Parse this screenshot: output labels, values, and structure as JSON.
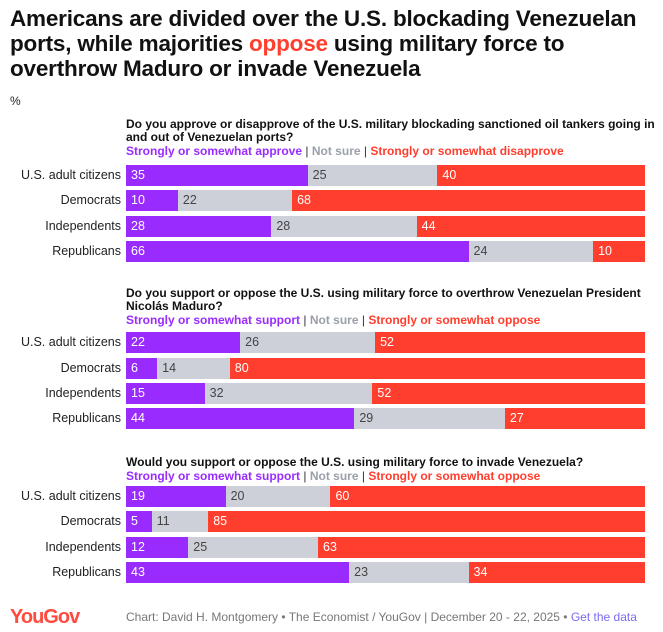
{
  "title_parts": {
    "pre": "Americans are divided over the U.S. blockading Venezuelan ports, while majorities ",
    "highlight": "oppose",
    "post": " using military force to overthrow Maduro or invade Venezuela"
  },
  "unit": "%",
  "colors": {
    "approve": "#9a2bff",
    "not_sure": "#cdd0d9",
    "oppose": "#ff3e2e"
  },
  "chart_data": [
    {
      "type": "bar",
      "stacked": true,
      "orientation": "horizontal",
      "title": "Do you approve or disapprove of the U.S. military blockading sanctioned oil tankers going in and out of Venezuelan ports?",
      "legend": [
        "Strongly or somewhat approve",
        "Not sure",
        "Strongly or somewhat disapprove"
      ],
      "categories": [
        "U.S. adult citizens",
        "Democrats",
        "Independents",
        "Republicans"
      ],
      "series": [
        {
          "name": "Strongly or somewhat approve",
          "values": [
            35,
            10,
            28,
            66
          ]
        },
        {
          "name": "Not sure",
          "values": [
            25,
            22,
            28,
            24
          ]
        },
        {
          "name": "Strongly or somewhat disapprove",
          "values": [
            40,
            68,
            44,
            10
          ]
        }
      ]
    },
    {
      "type": "bar",
      "stacked": true,
      "orientation": "horizontal",
      "title": "Do you support or oppose the U.S. using military force to overthrow Venezuelan President Nicolás Maduro?",
      "legend": [
        "Strongly or somewhat support",
        "Not sure",
        "Strongly or somewhat oppose"
      ],
      "categories": [
        "U.S. adult citizens",
        "Democrats",
        "Independents",
        "Republicans"
      ],
      "series": [
        {
          "name": "Strongly or somewhat support",
          "values": [
            22,
            6,
            15,
            44
          ]
        },
        {
          "name": "Not sure",
          "values": [
            26,
            14,
            32,
            29
          ]
        },
        {
          "name": "Strongly or somewhat oppose",
          "values": [
            52,
            80,
            52,
            27
          ]
        }
      ]
    },
    {
      "type": "bar",
      "stacked": true,
      "orientation": "horizontal",
      "title": "Would you support or oppose the U.S. using military force to invade Venezuela?",
      "legend": [
        "Strongly or somewhat support",
        "Not sure",
        "Strongly or somewhat oppose"
      ],
      "categories": [
        "U.S. adult citizens",
        "Democrats",
        "Independents",
        "Republicans"
      ],
      "series": [
        {
          "name": "Strongly or somewhat support",
          "values": [
            19,
            5,
            12,
            43
          ]
        },
        {
          "name": "Not sure",
          "values": [
            20,
            11,
            25,
            23
          ]
        },
        {
          "name": "Strongly or somewhat oppose",
          "values": [
            60,
            85,
            63,
            34
          ]
        }
      ]
    }
  ],
  "legend_separator": "|",
  "footer": {
    "logo": "YouGov",
    "source": "Chart: David H. Montgomery • The Economist / YouGov | December 20 - 22, 2025 • ",
    "link": "Get the data"
  }
}
